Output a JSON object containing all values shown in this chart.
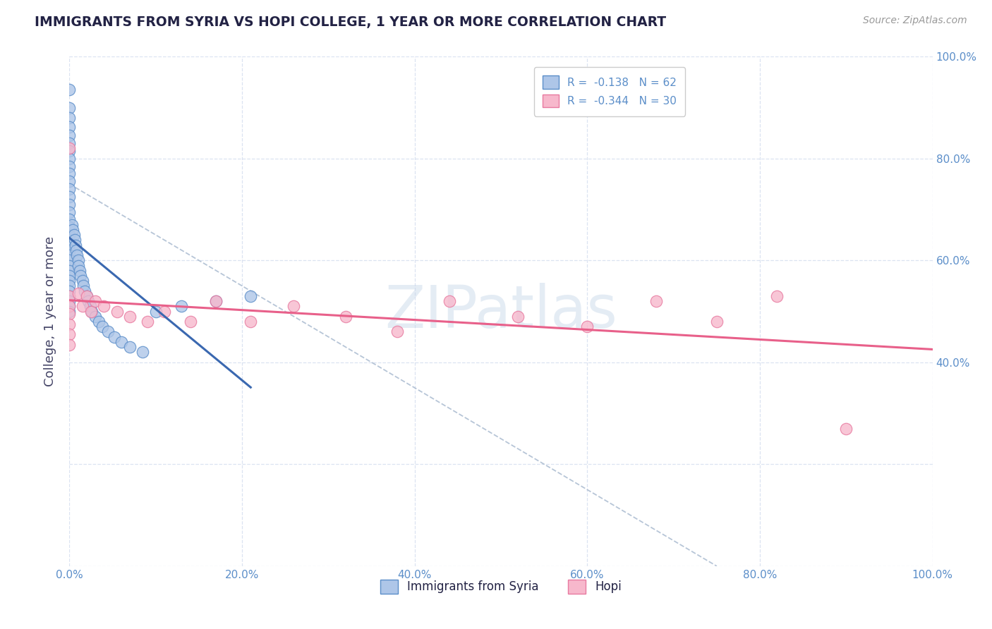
{
  "title": "IMMIGRANTS FROM SYRIA VS HOPI COLLEGE, 1 YEAR OR MORE CORRELATION CHART",
  "source_text": "Source: ZipAtlas.com",
  "ylabel": "College, 1 year or more",
  "r_syria": -0.138,
  "n_syria": 62,
  "r_hopi": -0.344,
  "n_hopi": 30,
  "legend_labels": [
    "Immigrants from Syria",
    "Hopi"
  ],
  "blue_fill": "#aec6e8",
  "pink_fill": "#f7b8cc",
  "blue_edge": "#5b8ec9",
  "pink_edge": "#e87aa0",
  "blue_line": "#3a68b0",
  "pink_line": "#e8608a",
  "dashed_color": "#aabbd0",
  "title_color": "#222244",
  "source_color": "#999999",
  "right_tick_color": "#5b8ec9",
  "ylabel_color": "#444466",
  "bottom_tick_color": "#5b8ec9",
  "grid_color": "#d8e0f0",
  "background": "#ffffff",
  "watermark": "ZIPatlas",
  "syria_x": [
    0.0,
    0.0,
    0.0,
    0.0,
    0.0,
    0.0,
    0.0,
    0.0,
    0.0,
    0.0,
    0.0,
    0.0,
    0.0,
    0.0,
    0.0,
    0.0,
    0.0,
    0.0,
    0.0,
    0.0,
    0.0,
    0.0,
    0.0,
    0.0,
    0.0,
    0.0,
    0.0,
    0.0,
    0.0,
    0.0,
    0.0,
    0.0,
    0.003,
    0.004,
    0.005,
    0.006,
    0.007,
    0.008,
    0.009,
    0.01,
    0.01,
    0.012,
    0.013,
    0.015,
    0.016,
    0.018,
    0.02,
    0.022,
    0.024,
    0.026,
    0.03,
    0.034,
    0.038,
    0.045,
    0.052,
    0.06,
    0.07,
    0.085,
    0.1,
    0.13,
    0.17,
    0.21
  ],
  "syria_y": [
    0.935,
    0.9,
    0.88,
    0.862,
    0.845,
    0.83,
    0.815,
    0.8,
    0.785,
    0.77,
    0.755,
    0.74,
    0.725,
    0.71,
    0.695,
    0.68,
    0.665,
    0.65,
    0.635,
    0.62,
    0.61,
    0.6,
    0.59,
    0.58,
    0.57,
    0.56,
    0.55,
    0.54,
    0.53,
    0.52,
    0.51,
    0.5,
    0.67,
    0.66,
    0.65,
    0.64,
    0.63,
    0.62,
    0.61,
    0.6,
    0.59,
    0.58,
    0.57,
    0.56,
    0.55,
    0.54,
    0.53,
    0.52,
    0.51,
    0.5,
    0.49,
    0.48,
    0.47,
    0.46,
    0.45,
    0.44,
    0.43,
    0.42,
    0.5,
    0.51,
    0.52,
    0.53
  ],
  "hopi_x": [
    0.0,
    0.0,
    0.0,
    0.0,
    0.0,
    0.0,
    0.0,
    0.01,
    0.015,
    0.02,
    0.025,
    0.03,
    0.04,
    0.055,
    0.07,
    0.09,
    0.11,
    0.14,
    0.17,
    0.21,
    0.26,
    0.32,
    0.38,
    0.44,
    0.52,
    0.6,
    0.68,
    0.75,
    0.82,
    0.9
  ],
  "hopi_y": [
    0.82,
    0.53,
    0.51,
    0.495,
    0.475,
    0.455,
    0.435,
    0.535,
    0.51,
    0.53,
    0.5,
    0.52,
    0.51,
    0.5,
    0.49,
    0.48,
    0.5,
    0.48,
    0.52,
    0.48,
    0.51,
    0.49,
    0.46,
    0.52,
    0.49,
    0.47,
    0.52,
    0.48,
    0.53,
    0.27
  ],
  "xlim": [
    0.0,
    1.0
  ],
  "ylim": [
    0.0,
    1.0
  ],
  "x_ticks": [
    0.0,
    0.2,
    0.4,
    0.6,
    0.8,
    1.0
  ],
  "y_ticks_right": [
    0.4,
    0.6,
    0.8,
    1.0
  ],
  "x_tick_labels": [
    "0.0%",
    "20.0%",
    "40.0%",
    "60.0%",
    "80.0%",
    "100.0%"
  ],
  "y_tick_labels_right": [
    "40.0%",
    "60.0%",
    "80.0%",
    "100.0%"
  ]
}
